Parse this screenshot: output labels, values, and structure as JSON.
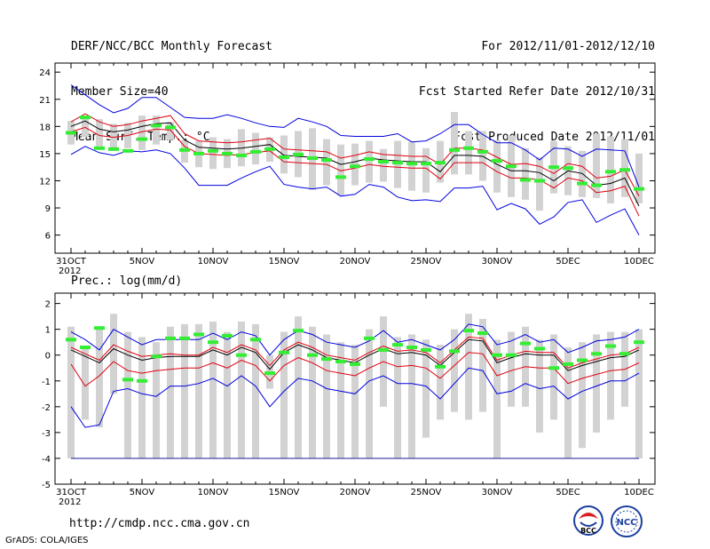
{
  "header": {
    "left": [
      "DERF/NCC/BCC Monthly Forecast",
      "Member Size=40",
      "Mean Surf. Temp.: °C"
    ],
    "right": [
      "For 2012/11/01-2012/12/10",
      "Fcst Started Refer Date 2012/10/31",
      "Fcst Produced Date 2012/11/01"
    ]
  },
  "footer": {
    "url": "http://cmdp.ncc.cma.gov.cn",
    "grads": "GrADS: COLA/IGES",
    "logo_bcc": "BCC",
    "logo_ncc": "NCC"
  },
  "x_axis": {
    "labels": [
      "31OCT",
      "5NOV",
      "10NOV",
      "15NOV",
      "20NOV",
      "25NOV",
      "30NOV",
      "5DEC",
      "10DEC"
    ],
    "label_days": [
      0,
      5,
      10,
      15,
      20,
      25,
      30,
      35,
      40
    ],
    "year": "2012"
  },
  "colors": {
    "mean": "#000000",
    "std": "#e0000f",
    "envelope": "#0000e0",
    "box": "#d2d2d2",
    "obs": "#33ee33",
    "floor": "#1a1a9a"
  },
  "chart_data": [
    {
      "type": "line",
      "title": "Mean Surf. Temp.: °C",
      "xlabel": "",
      "ylabel": "°C",
      "x": [
        0,
        1,
        2,
        3,
        4,
        5,
        6,
        7,
        8,
        9,
        10,
        11,
        12,
        13,
        14,
        15,
        16,
        17,
        18,
        19,
        20,
        21,
        22,
        23,
        24,
        25,
        26,
        27,
        28,
        29,
        30,
        31,
        32,
        33,
        34,
        35,
        36,
        37,
        38,
        39,
        40
      ],
      "ylim": [
        4,
        25
      ],
      "yticks": [
        6,
        9,
        12,
        15,
        18,
        21,
        24
      ],
      "series": [
        {
          "name": "ensemble mean",
          "values": [
            18.0,
            18.6,
            17.7,
            17.4,
            17.6,
            18.0,
            18.3,
            18.4,
            16.5,
            15.7,
            15.6,
            15.5,
            15.6,
            15.8,
            16.0,
            14.8,
            14.7,
            14.6,
            14.5,
            13.8,
            14.1,
            14.5,
            14.3,
            14.2,
            14.1,
            14.1,
            13.0,
            14.8,
            14.8,
            14.7,
            13.8,
            13.1,
            13.1,
            12.9,
            12.0,
            13.1,
            12.8,
            11.5,
            11.7,
            12.3,
            9.2
          ]
        },
        {
          "name": "mean + std",
          "values": [
            18.5,
            19.4,
            18.5,
            18.0,
            18.2,
            18.6,
            18.9,
            19.2,
            17.2,
            16.4,
            16.3,
            16.2,
            16.3,
            16.5,
            16.7,
            15.5,
            15.4,
            15.3,
            15.2,
            14.5,
            14.8,
            15.2,
            14.9,
            14.8,
            14.7,
            14.7,
            13.8,
            15.6,
            15.6,
            15.4,
            14.6,
            13.8,
            13.9,
            13.6,
            12.8,
            13.9,
            13.6,
            12.3,
            12.5,
            13.2,
            10.3
          ]
        },
        {
          "name": "mean - std",
          "values": [
            17.4,
            17.9,
            17.0,
            16.8,
            17.0,
            17.4,
            17.7,
            17.6,
            15.8,
            15.0,
            14.9,
            14.8,
            14.9,
            15.1,
            15.3,
            14.1,
            14.0,
            13.9,
            13.8,
            13.1,
            13.4,
            13.8,
            13.6,
            13.5,
            13.4,
            13.4,
            12.2,
            14.0,
            14.0,
            14.0,
            13.0,
            12.3,
            12.3,
            12.1,
            11.2,
            12.3,
            12.0,
            10.7,
            10.9,
            11.4,
            8.1
          ]
        },
        {
          "name": "ensemble max",
          "values": [
            22.6,
            21.5,
            20.4,
            19.5,
            20.0,
            21.2,
            21.2,
            20.1,
            19.0,
            18.9,
            18.9,
            19.3,
            18.9,
            18.4,
            18.0,
            17.9,
            18.9,
            18.5,
            18.0,
            17.0,
            16.9,
            16.9,
            16.9,
            17.2,
            16.3,
            16.4,
            17.2,
            18.2,
            18.2,
            17.1,
            16.2,
            16.2,
            15.4,
            14.3,
            15.6,
            15.5,
            14.7,
            15.5,
            15.4,
            15.3,
            11.3
          ]
        },
        {
          "name": "ensemble min",
          "values": [
            14.9,
            15.8,
            15.1,
            14.8,
            15.3,
            15.2,
            15.4,
            15.0,
            13.4,
            11.5,
            11.5,
            11.5,
            12.3,
            13.0,
            13.6,
            11.6,
            11.3,
            11.1,
            11.3,
            10.3,
            10.5,
            11.6,
            11.3,
            10.2,
            9.8,
            9.9,
            9.7,
            11.2,
            11.2,
            11.4,
            8.8,
            9.5,
            8.9,
            7.2,
            8.0,
            9.6,
            9.9,
            7.4,
            8.2,
            8.9,
            6.0
          ]
        }
      ],
      "boxes_low": [
        16.0,
        16.8,
        15.8,
        15.3,
        15.6,
        15.4,
        16.0,
        16.5,
        14.0,
        13.5,
        13.3,
        13.4,
        13.6,
        13.8,
        14.1,
        12.8,
        12.4,
        11.0,
        11.5,
        10.4,
        11.5,
        11.8,
        11.9,
        11.2,
        10.9,
        10.7,
        11.8,
        12.7,
        12.7,
        12.0,
        10.7,
        10.2,
        9.9,
        8.7,
        10.6,
        10.4,
        10.2,
        10.1,
        9.5,
        10.2,
        9.5
      ],
      "boxes_high": [
        18.6,
        18.9,
        18.8,
        18.3,
        18.4,
        19.2,
        19.2,
        18.5,
        16.5,
        16.4,
        16.8,
        16.6,
        17.7,
        17.3,
        16.8,
        17.0,
        17.5,
        17.8,
        16.6,
        16.0,
        16.1,
        16.4,
        15.5,
        16.4,
        16.3,
        15.6,
        16.4,
        19.6,
        17.5,
        17.5,
        16.5,
        17.0,
        15.6,
        14.6,
        16.4,
        15.8,
        15.3,
        17.2,
        16.9,
        16.6,
        15.0
      ],
      "observed": [
        17.3,
        19.0,
        15.6,
        15.5,
        15.3,
        16.6,
        18.1,
        17.9,
        15.4,
        15.0,
        15.3,
        15.0,
        14.8,
        15.2,
        15.5,
        14.6,
        14.9,
        14.5,
        14.3,
        12.4,
        13.6,
        14.4,
        14.1,
        14.0,
        13.9,
        13.9,
        14.0,
        15.4,
        15.6,
        15.2,
        14.2,
        13.6,
        12.1,
        12.0,
        13.5,
        13.4,
        11.7,
        11.5,
        13.0,
        13.2,
        11.1
      ]
    },
    {
      "type": "line",
      "title": "Prec.: log(mm/d)",
      "xlabel": "",
      "ylabel": "log(mm/d)",
      "x": [
        0,
        1,
        2,
        3,
        4,
        5,
        6,
        7,
        8,
        9,
        10,
        11,
        12,
        13,
        14,
        15,
        16,
        17,
        18,
        19,
        20,
        21,
        22,
        23,
        24,
        25,
        26,
        27,
        28,
        29,
        30,
        31,
        32,
        33,
        34,
        35,
        36,
        37,
        38,
        39,
        40
      ],
      "ylim": [
        -5,
        2.4
      ],
      "yticks": [
        -5,
        -4,
        -3,
        -2,
        -1,
        0,
        1,
        2
      ],
      "floor": -4,
      "series": [
        {
          "name": "ensemble mean",
          "values": [
            0.2,
            -0.05,
            -0.3,
            0.25,
            0.0,
            -0.2,
            -0.1,
            -0.05,
            -0.05,
            -0.05,
            0.2,
            0.0,
            0.3,
            0.1,
            -0.55,
            0.1,
            0.4,
            0.2,
            -0.1,
            -0.2,
            -0.3,
            0.0,
            0.25,
            0.05,
            0.1,
            0.0,
            -0.4,
            0.1,
            0.6,
            0.55,
            -0.3,
            -0.1,
            0.05,
            0.0,
            0.0,
            -0.6,
            -0.4,
            -0.25,
            -0.1,
            -0.05,
            0.2
          ]
        },
        {
          "name": "mean + std",
          "values": [
            0.3,
            0.05,
            -0.2,
            0.4,
            0.15,
            -0.05,
            0.0,
            0.05,
            0.0,
            0.0,
            0.3,
            0.1,
            0.4,
            0.2,
            -0.4,
            0.2,
            0.5,
            0.3,
            0.0,
            -0.1,
            -0.2,
            0.1,
            0.35,
            0.15,
            0.2,
            0.1,
            -0.3,
            0.2,
            0.7,
            0.65,
            -0.2,
            0.0,
            0.15,
            0.1,
            0.1,
            -0.5,
            -0.3,
            -0.15,
            0.0,
            0.05,
            0.3
          ]
        },
        {
          "name": "mean - std",
          "values": [
            -0.35,
            -1.2,
            -0.8,
            -0.25,
            -0.6,
            -0.7,
            -0.6,
            -0.55,
            -0.5,
            -0.5,
            -0.3,
            -0.5,
            -0.2,
            -0.4,
            -1.0,
            -0.4,
            -0.1,
            -0.3,
            -0.6,
            -0.7,
            -0.8,
            -0.5,
            -0.25,
            -0.45,
            -0.4,
            -0.5,
            -0.9,
            -0.4,
            0.1,
            0.05,
            -0.8,
            -0.6,
            -0.45,
            -0.5,
            -0.5,
            -1.1,
            -0.9,
            -0.75,
            -0.6,
            -0.55,
            -0.3
          ]
        },
        {
          "name": "ensemble max",
          "values": [
            0.9,
            0.6,
            0.2,
            1.0,
            0.7,
            0.4,
            0.6,
            0.6,
            0.6,
            0.6,
            0.85,
            0.6,
            0.9,
            0.75,
            0.0,
            0.6,
            0.95,
            0.8,
            0.5,
            0.4,
            0.3,
            0.55,
            0.95,
            0.5,
            0.6,
            0.4,
            0.2,
            0.6,
            1.2,
            1.1,
            0.4,
            0.55,
            0.8,
            0.5,
            0.6,
            0.1,
            0.3,
            0.55,
            0.6,
            0.7,
            1.0
          ]
        },
        {
          "name": "ensemble min",
          "values": [
            -2.0,
            -2.8,
            -2.7,
            -1.4,
            -1.3,
            -1.5,
            -1.6,
            -1.2,
            -1.2,
            -1.1,
            -0.9,
            -1.2,
            -0.8,
            -1.2,
            -2.0,
            -1.4,
            -0.9,
            -1.0,
            -1.3,
            -1.4,
            -1.5,
            -1.0,
            -0.8,
            -1.1,
            -1.1,
            -1.2,
            -1.7,
            -1.1,
            -0.5,
            -0.6,
            -1.5,
            -1.4,
            -1.1,
            -1.3,
            -1.2,
            -1.7,
            -1.4,
            -1.2,
            -1.0,
            -1.0,
            -0.7
          ]
        }
      ],
      "boxes_low": [
        -4.0,
        -2.5,
        -2.8,
        -1.5,
        -4.0,
        -4.0,
        -4.0,
        -4.0,
        -4.0,
        -4.0,
        -4.0,
        -4.0,
        -4.0,
        -4.0,
        -1.3,
        -4.0,
        -4.0,
        -4.0,
        -4.0,
        -4.0,
        -4.0,
        -4.0,
        -2.0,
        -4.0,
        -4.0,
        -3.2,
        -2.5,
        -2.2,
        -2.5,
        -2.2,
        -4.0,
        -2.0,
        -2.0,
        -3.0,
        -2.5,
        -4.0,
        -3.6,
        -3.0,
        -2.5,
        -2.0,
        -4.0
      ],
      "boxes_high": [
        1.1,
        0.3,
        1.1,
        1.6,
        0.9,
        0.7,
        0.5,
        1.1,
        1.2,
        1.2,
        1.3,
        0.9,
        1.3,
        1.2,
        0.0,
        0.9,
        1.5,
        1.1,
        0.8,
        0.5,
        0.4,
        1.0,
        1.5,
        0.7,
        0.8,
        0.6,
        0.4,
        1.0,
        1.6,
        1.4,
        0.6,
        0.9,
        1.1,
        0.6,
        0.8,
        0.3,
        0.5,
        0.8,
        0.9,
        0.9,
        1.0
      ],
      "observed": [
        0.6,
        0.3,
        1.05,
        null,
        -0.95,
        -1.0,
        -0.05,
        0.65,
        0.65,
        0.8,
        0.5,
        0.75,
        0.0,
        0.6,
        -0.7,
        0.1,
        0.95,
        0.0,
        -0.15,
        -0.25,
        -0.35,
        0.65,
        0.2,
        0.4,
        0.3,
        0.2,
        -0.45,
        0.15,
        0.95,
        0.85,
        0.0,
        0.0,
        0.45,
        0.25,
        -0.5,
        -0.35,
        -0.2,
        0.05,
        0.35,
        0.05,
        0.5
      ]
    }
  ]
}
